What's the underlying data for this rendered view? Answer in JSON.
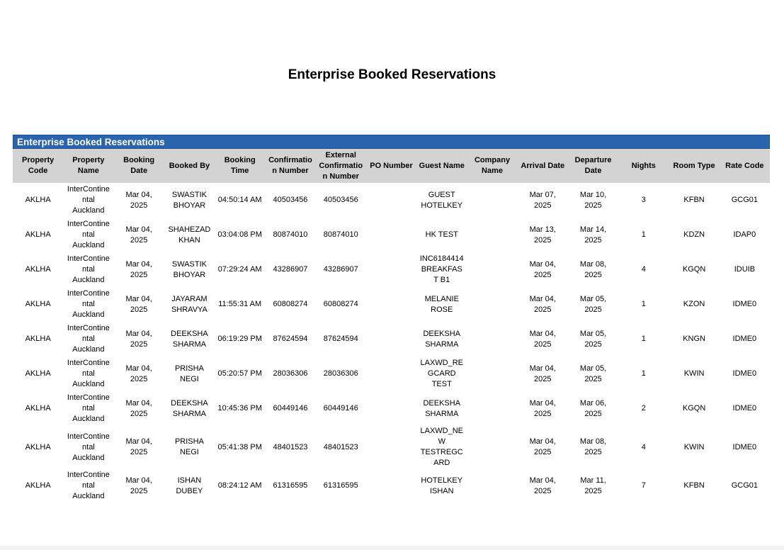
{
  "header": {
    "title": "Enterprise Booked Reservations"
  },
  "table": {
    "title": "Enterprise Booked Reservations",
    "columns": [
      "Property Code",
      "Property Name",
      "Booking Date",
      "Booked By",
      "Booking Time",
      "Confirmation Number",
      "External Confirmation Number",
      "PO Number",
      "Guest Name",
      "Company Name",
      "Arrival Date",
      "Departure Date",
      "Nights",
      "Room Type",
      "Rate Code"
    ],
    "rows": [
      [
        "AKLHA",
        "InterContinental Auckland",
        "Mar 04, 2025",
        "SWASTIK BHOYAR",
        "04:50:14 AM",
        "40503456",
        "40503456",
        "",
        "GUEST HOTELKEY",
        "",
        "Mar 07, 2025",
        "Mar 10, 2025",
        "3",
        "KFBN",
        "GCG01"
      ],
      [
        "AKLHA",
        "InterContinental Auckland",
        "Mar 04, 2025",
        "SHAHEZAD KHAN",
        "03:04:08 PM",
        "80874010",
        "80874010",
        "",
        "HK TEST",
        "",
        "Mar 13, 2025",
        "Mar 14, 2025",
        "1",
        "KDZN",
        "IDAP0"
      ],
      [
        "AKLHA",
        "InterContinental Auckland",
        "Mar 04, 2025",
        "SWASTIK BHOYAR",
        "07:29:24 AM",
        "43286907",
        "43286907",
        "",
        "INC6184414 BREAKFAST B1",
        "",
        "Mar 04, 2025",
        "Mar 08, 2025",
        "4",
        "KGQN",
        "IDUIB"
      ],
      [
        "AKLHA",
        "InterContinental Auckland",
        "Mar 04, 2025",
        "JAYARAM SHRAVYA",
        "11:55:31 AM",
        "60808274",
        "60808274",
        "",
        "MELANIE ROSE",
        "",
        "Mar 04, 2025",
        "Mar 05, 2025",
        "1",
        "KZON",
        "IDME0"
      ],
      [
        "AKLHA",
        "InterContinental Auckland",
        "Mar 04, 2025",
        "DEEKSHA SHARMA",
        "06:19:29 PM",
        "87624594",
        "87624594",
        "",
        "DEEKSHA SHARMA",
        "",
        "Mar 04, 2025",
        "Mar 05, 2025",
        "1",
        "KNGN",
        "IDME0"
      ],
      [
        "AKLHA",
        "InterContinental Auckland",
        "Mar 04, 2025",
        "PRISHA NEGI",
        "05:20:57 PM",
        "28036306",
        "28036306",
        "",
        "LAXWD_REGCARD TEST",
        "",
        "Mar 04, 2025",
        "Mar 05, 2025",
        "1",
        "KWIN",
        "IDME0"
      ],
      [
        "AKLHA",
        "InterContinental Auckland",
        "Mar 04, 2025",
        "DEEKSHA SHARMA",
        "10:45:36 PM",
        "60449146",
        "60449146",
        "",
        "DEEKSHA SHARMA",
        "",
        "Mar 04, 2025",
        "Mar 06, 2025",
        "2",
        "KGQN",
        "IDME0"
      ],
      [
        "AKLHA",
        "InterContinental Auckland",
        "Mar 04, 2025",
        "PRISHA NEGI",
        "05:41:38 PM",
        "48401523",
        "48401523",
        "",
        "LAXWD_NEW TESTREGCARD",
        "",
        "Mar 04, 2025",
        "Mar 08, 2025",
        "4",
        "KWIN",
        "IDME0"
      ],
      [
        "AKLHA",
        "InterContinental Auckland",
        "Mar 04, 2025",
        "ISHAN DUBEY",
        "08:24:12 AM",
        "61316595",
        "61316595",
        "",
        "HOTELKEY ISHAN",
        "",
        "Mar 04, 2025",
        "Mar 11, 2025",
        "7",
        "KFBN",
        "GCG01"
      ]
    ]
  }
}
